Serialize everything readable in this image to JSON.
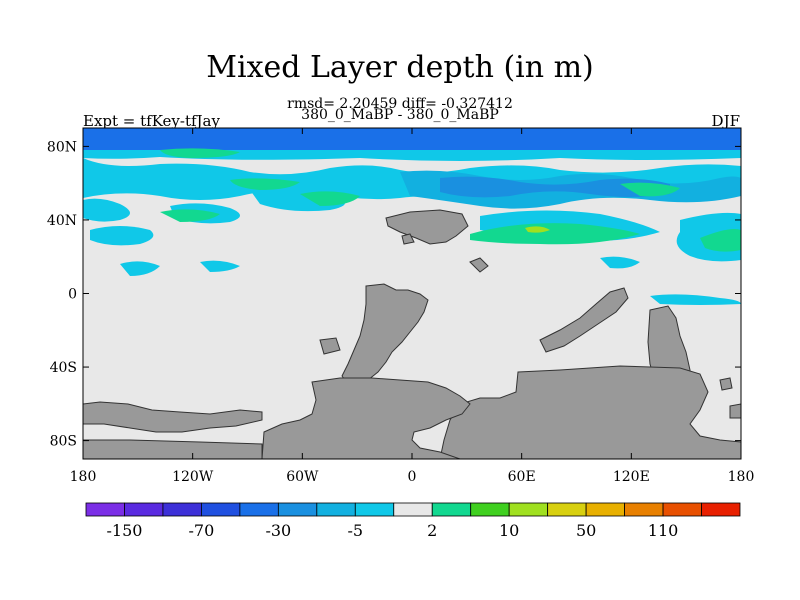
{
  "chart_data": {
    "type": "heatmap",
    "title": "Mixed Layer depth (in m)",
    "stats_line": "rmsd= 2.20459  diff= -0.327412",
    "subtitle": "380_0_MaBP - 380_0_MaBP",
    "left_label": "Expt = tfKey-tfJay",
    "right_label": "DJF",
    "x_ticks": [
      "180",
      "120W",
      "60W",
      "0",
      "60E",
      "120E",
      "180"
    ],
    "y_ticks": [
      "80N",
      "40N",
      "0",
      "40S",
      "80S"
    ],
    "xlim": [
      -180,
      180
    ],
    "ylim": [
      -90,
      90
    ],
    "colorbar": {
      "colors": [
        "#7b2ee6",
        "#5a2ae0",
        "#3d30d8",
        "#2050e0",
        "#1a70e8",
        "#1a90e0",
        "#12b0e0",
        "#10c8e8",
        "#e8e8e8",
        "#12d890",
        "#40d020",
        "#a0e020",
        "#d8d010",
        "#e8b000",
        "#e88000",
        "#e85000",
        "#e82000"
      ],
      "labels": [
        "-150",
        "-70",
        "-30",
        "-5",
        "2",
        "10",
        "50",
        "110"
      ]
    },
    "land_color": "#999999",
    "ocean_background": "#e8e8e8"
  }
}
